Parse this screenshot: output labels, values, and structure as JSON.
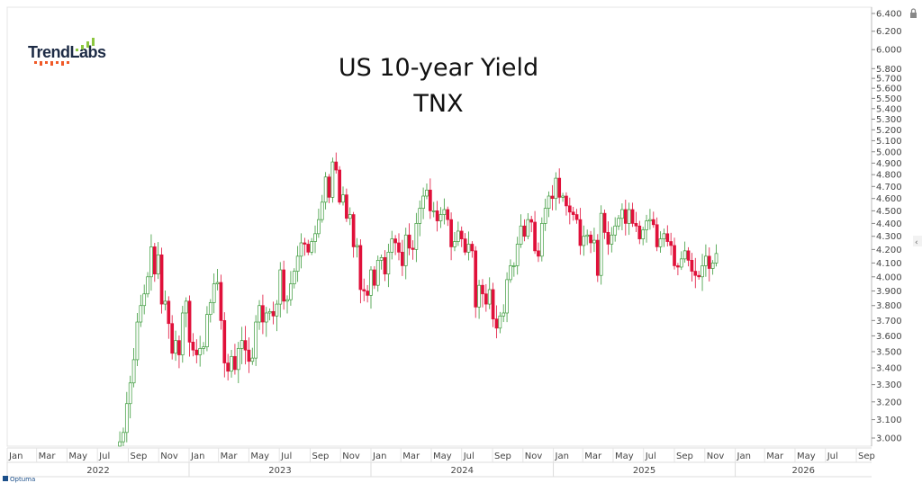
{
  "brand": {
    "logo_text": "TrendLabs",
    "footer": "Optuma"
  },
  "colors": {
    "up": "#3a9a3a",
    "up_fill": "#ffffff",
    "down": "#e0103a",
    "logo_bars_green": "#8cc63f",
    "logo_bars_red": "#f05a28"
  },
  "chart_data": {
    "type": "candlestick",
    "title": "US 10-year Yield",
    "subtitle": "TNX",
    "y_scale": "log",
    "ylim": [
      2.95,
      6.45
    ],
    "y_ticks": [
      "6.400",
      "6.200",
      "6.000",
      "5.800",
      "5.700",
      "5.600",
      "5.500",
      "5.400",
      "5.300",
      "5.200",
      "5.100",
      "5.000",
      "4.900",
      "4.800",
      "4.700",
      "4.600",
      "4.500",
      "4.400",
      "4.300",
      "4.200",
      "4.100",
      "4.000",
      "3.900",
      "3.800",
      "3.700",
      "3.600",
      "3.500",
      "3.400",
      "3.300",
      "3.200",
      "3.100",
      "3.000"
    ],
    "x_month_ticks": [
      "Jan",
      "Mar",
      "May",
      "Jul",
      "Sep",
      "Nov",
      "Jan",
      "Mar",
      "May",
      "Jul",
      "Sep",
      "Nov",
      "Jan",
      "Mar",
      "May",
      "Jul",
      "Sep",
      "Nov",
      "Jan",
      "Mar",
      "May",
      "Jul",
      "Sep",
      "Nov",
      "Jan",
      "Mar",
      "May",
      "Jul",
      "Sep"
    ],
    "x_year_ticks": [
      "2022",
      "2023",
      "2024",
      "2025",
      "2026"
    ],
    "interval": "weekly",
    "first_week": "2022-08-01",
    "first_open": 2.7,
    "weekly_close": [
      2.85,
      2.85,
      2.98,
      3.03,
      3.19,
      3.31,
      3.45,
      3.69,
      3.8,
      3.88,
      4.0,
      4.22,
      4.02,
      4.16,
      3.81,
      3.83,
      3.68,
      3.49,
      3.57,
      3.48,
      3.75,
      3.83,
      3.56,
      3.51,
      3.48,
      3.52,
      3.53,
      3.74,
      3.82,
      3.95,
      3.96,
      3.7,
      3.43,
      3.38,
      3.47,
      3.39,
      3.52,
      3.57,
      3.51,
      3.44,
      3.46,
      3.69,
      3.8,
      3.69,
      3.75,
      3.76,
      3.73,
      3.81,
      4.05,
      3.83,
      3.84,
      3.95,
      4.04,
      4.15,
      4.25,
      4.24,
      4.18,
      4.26,
      4.32,
      4.43,
      4.57,
      4.78,
      4.61,
      4.91,
      4.84,
      4.57,
      4.63,
      4.44,
      4.47,
      4.22,
      4.23,
      3.91,
      3.9,
      3.87,
      4.05,
      3.94,
      4.12,
      4.14,
      4.02,
      4.18,
      4.28,
      4.25,
      4.18,
      4.08,
      4.31,
      4.21,
      4.2,
      4.4,
      4.52,
      4.62,
      4.67,
      4.5,
      4.5,
      4.42,
      4.47,
      4.51,
      4.43,
      4.22,
      4.26,
      4.34,
      4.28,
      4.18,
      4.24,
      4.19,
      3.79,
      3.94,
      3.88,
      3.81,
      3.91,
      3.71,
      3.65,
      3.73,
      3.75,
      3.98,
      4.08,
      4.08,
      4.24,
      4.38,
      4.3,
      4.43,
      4.41,
      4.19,
      4.15,
      4.4,
      4.52,
      4.62,
      4.6,
      4.77,
      4.61,
      4.62,
      4.54,
      4.49,
      4.47,
      4.43,
      4.23,
      4.3,
      4.31,
      4.25,
      4.27,
      4.01,
      4.48,
      4.33,
      4.24,
      4.31,
      4.38,
      4.44,
      4.51,
      4.4,
      4.51,
      4.4,
      4.38,
      4.28,
      4.35,
      4.42,
      4.43,
      4.39,
      4.22,
      4.28,
      4.32,
      4.26,
      4.23,
      4.08,
      4.07,
      4.13,
      4.19,
      4.12,
      4.04,
      4.01,
      4.0,
      4.08,
      4.15,
      4.06,
      4.1,
      4.17
    ]
  }
}
